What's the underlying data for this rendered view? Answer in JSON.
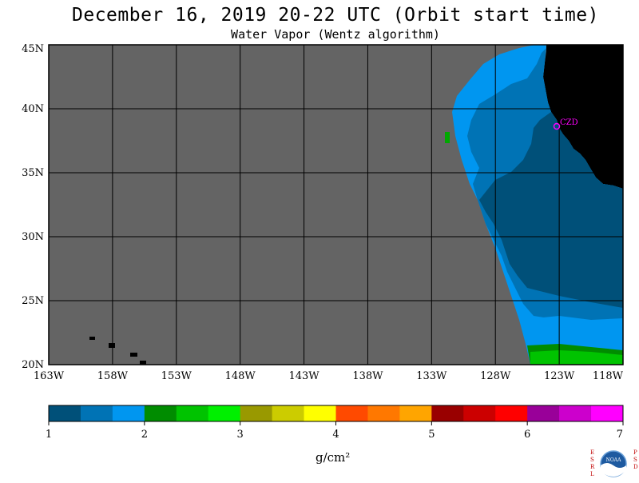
{
  "title": "December 16, 2019  20-22 UTC  (Orbit start time)",
  "subtitle": "Water Vapor (Wentz algorithm)",
  "map": {
    "lat_labels": [
      "45N",
      "40N",
      "35N",
      "30N",
      "25N",
      "20N"
    ],
    "lon_labels": [
      "163W",
      "158W",
      "153W",
      "148W",
      "143W",
      "138W",
      "133W",
      "128W",
      "123W",
      "118W"
    ],
    "station_label": "CZD",
    "no_data_color": "#646464",
    "land_color": "#000000",
    "station_color": "#ff00ff"
  },
  "colorbar": {
    "ticks": [
      "1",
      "2",
      "3",
      "4",
      "5",
      "6",
      "7"
    ],
    "unit": "g/cm²",
    "colors": [
      "#005079",
      "#0073b5",
      "#0096f0",
      "#008c00",
      "#00c300",
      "#00f000",
      "#999900",
      "#cccc00",
      "#ffff00",
      "#ff4a00",
      "#ff7800",
      "#ffa500",
      "#990000",
      "#cc0000",
      "#ff0000",
      "#990099",
      "#cc00cc",
      "#ff00ff"
    ]
  },
  "logo": {
    "left_letters": "ESRL",
    "right_letters": "PSD",
    "emblem_text": "NOAA"
  }
}
